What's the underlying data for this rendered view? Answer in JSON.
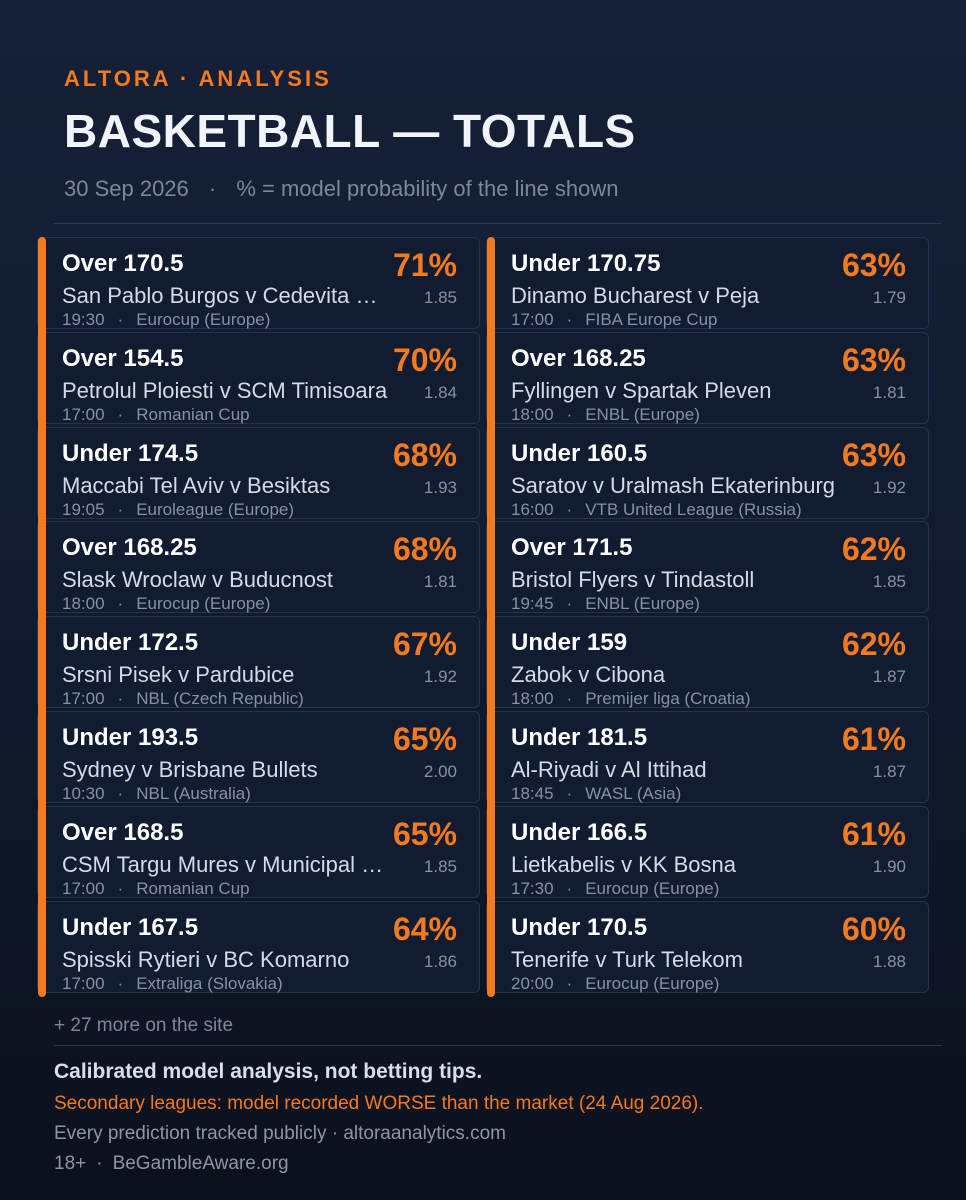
{
  "header": {
    "brand": "ALTORA   ·   ANALYSIS",
    "title": "BASKETBALL — TOTALS",
    "date": "30 Sep 2026",
    "separator": "·",
    "note": "% = model probability of the line shown"
  },
  "colors": {
    "accent": "#f47a1f",
    "card_bg": "#111c31",
    "card_border": "#253350"
  },
  "left_column": [
    {
      "pick": "Over 170.5",
      "match": "San Pablo Burgos v Cedevita …",
      "time": "19:30",
      "league": "Eurocup (Europe)",
      "pct": "71%",
      "odds": "1.85"
    },
    {
      "pick": "Over 154.5",
      "match": "Petrolul Ploiesti v SCM Timisoara",
      "time": "17:00",
      "league": "Romanian Cup",
      "pct": "70%",
      "odds": "1.84"
    },
    {
      "pick": "Under 174.5",
      "match": "Maccabi Tel Aviv v Besiktas",
      "time": "19:05",
      "league": "Euroleague (Europe)",
      "pct": "68%",
      "odds": "1.93"
    },
    {
      "pick": "Over 168.25",
      "match": "Slask Wroclaw v Buducnost",
      "time": "18:00",
      "league": "Eurocup (Europe)",
      "pct": "68%",
      "odds": "1.81"
    },
    {
      "pick": "Under 172.5",
      "match": "Srsni Pisek v Pardubice",
      "time": "17:00",
      "league": "NBL (Czech Republic)",
      "pct": "67%",
      "odds": "1.92"
    },
    {
      "pick": "Under 193.5",
      "match": "Sydney v Brisbane Bullets",
      "time": "10:30",
      "league": "NBL (Australia)",
      "pct": "65%",
      "odds": "2.00"
    },
    {
      "pick": "Over 168.5",
      "match": "CSM Targu Mures v Municipal …",
      "time": "17:00",
      "league": "Romanian Cup",
      "pct": "65%",
      "odds": "1.85"
    },
    {
      "pick": "Under 167.5",
      "match": "Spisski Rytieri v BC Komarno",
      "time": "17:00",
      "league": "Extraliga (Slovakia)",
      "pct": "64%",
      "odds": "1.86"
    }
  ],
  "right_column": [
    {
      "pick": "Under 170.75",
      "match": "Dinamo Bucharest v Peja",
      "time": "17:00",
      "league": "FIBA Europe Cup",
      "pct": "63%",
      "odds": "1.79"
    },
    {
      "pick": "Over 168.25",
      "match": "Fyllingen v Spartak Pleven",
      "time": "18:00",
      "league": "ENBL (Europe)",
      "pct": "63%",
      "odds": "1.81"
    },
    {
      "pick": "Under 160.5",
      "match": "Saratov v Uralmash Ekaterinburg",
      "time": "16:00",
      "league": "VTB United League (Russia)",
      "pct": "63%",
      "odds": "1.92"
    },
    {
      "pick": "Over 171.5",
      "match": "Bristol Flyers v Tindastoll",
      "time": "19:45",
      "league": "ENBL (Europe)",
      "pct": "62%",
      "odds": "1.85"
    },
    {
      "pick": "Under 159",
      "match": "Zabok v Cibona",
      "time": "18:00",
      "league": "Premijer liga (Croatia)",
      "pct": "62%",
      "odds": "1.87"
    },
    {
      "pick": "Under 181.5",
      "match": "Al-Riyadi v Al Ittihad",
      "time": "18:45",
      "league": "WASL (Asia)",
      "pct": "61%",
      "odds": "1.87"
    },
    {
      "pick": "Under 166.5",
      "match": "Lietkabelis v KK Bosna",
      "time": "17:30",
      "league": "Eurocup (Europe)",
      "pct": "61%",
      "odds": "1.90"
    },
    {
      "pick": "Under 170.5",
      "match": "Tenerife v Turk Telekom",
      "time": "20:00",
      "league": "Eurocup (Europe)",
      "pct": "60%",
      "odds": "1.88"
    }
  ],
  "footer": {
    "more": "+ 27 more on the site",
    "disclaimer": "Calibrated model analysis, not betting tips.",
    "warning": "Secondary leagues: model recorded WORSE than the market (24 Aug 2026).",
    "tracking": "Every prediction tracked publicly · altoraanalytics.com",
    "age": "18+",
    "separator": "·",
    "gamble_aware": "BeGambleAware.org"
  }
}
